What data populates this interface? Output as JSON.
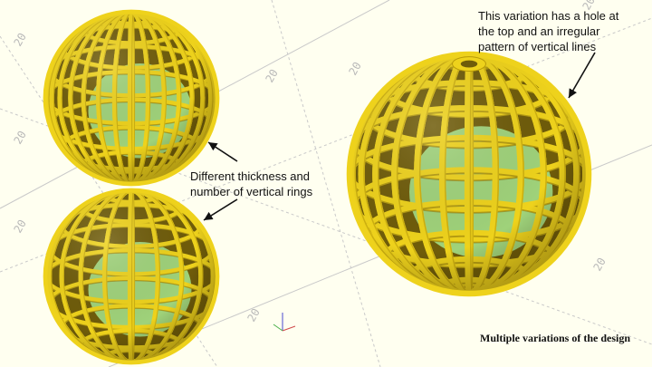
{
  "annotations": {
    "top_right": [
      "This variation has a hole at",
      "the top and an irregular",
      "pattern of vertical lines"
    ],
    "middle": [
      "Different thickness and",
      "number of vertical rings"
    ]
  },
  "caption": "Multiple variations of the design",
  "axis_tick_label": "20",
  "colors": {
    "background": "#fffff0",
    "lattice": "#eed21c",
    "lattice_edge": "#b89a08",
    "lattice_shadow": "#7a6408",
    "interior": "#9fd27a",
    "axis_lines": "#c9c9c9",
    "text": "#111111"
  },
  "spheres": [
    {
      "name": "small-sphere-top",
      "vertical_rings": 16,
      "horizontal_bands": 10,
      "top_hole": false
    },
    {
      "name": "small-sphere-bottom",
      "vertical_rings": 10,
      "horizontal_bands": 10,
      "top_hole": false
    },
    {
      "name": "large-sphere",
      "vertical_rings": 14,
      "horizontal_bands": 12,
      "top_hole": true
    }
  ]
}
